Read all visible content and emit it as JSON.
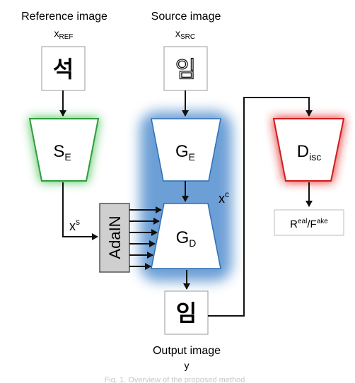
{
  "reference": {
    "title": "Reference image",
    "var": "x",
    "sub": "REF",
    "char": "석"
  },
  "source": {
    "title": "Source image",
    "var": "x",
    "sub": "SRC",
    "char": "임"
  },
  "style_encoder": {
    "main": "S",
    "sub": "E",
    "glow": "#3fbf4f"
  },
  "generator_encoder": {
    "main": "G",
    "sub": "E",
    "glow": "#3a7fc8"
  },
  "generator_decoder": {
    "main": "G",
    "sub": "D",
    "glow": "#3a7fc8"
  },
  "discriminator": {
    "main": "D",
    "sub": "isc",
    "glow": "#e02020"
  },
  "adain": {
    "label": "AdaIN",
    "fill": "#cfcfcf"
  },
  "style_code": {
    "var": "x",
    "sup": "s"
  },
  "content_code": {
    "var": "x",
    "sup": "c"
  },
  "output": {
    "char": "임",
    "title": "Output image",
    "var": "y"
  },
  "result": {
    "r": "R",
    "r_sup": "eal",
    "slash": "/",
    "f": "F",
    "f_sup": "ake"
  },
  "caption": "Fig. 1. Overview of the proposed method"
}
